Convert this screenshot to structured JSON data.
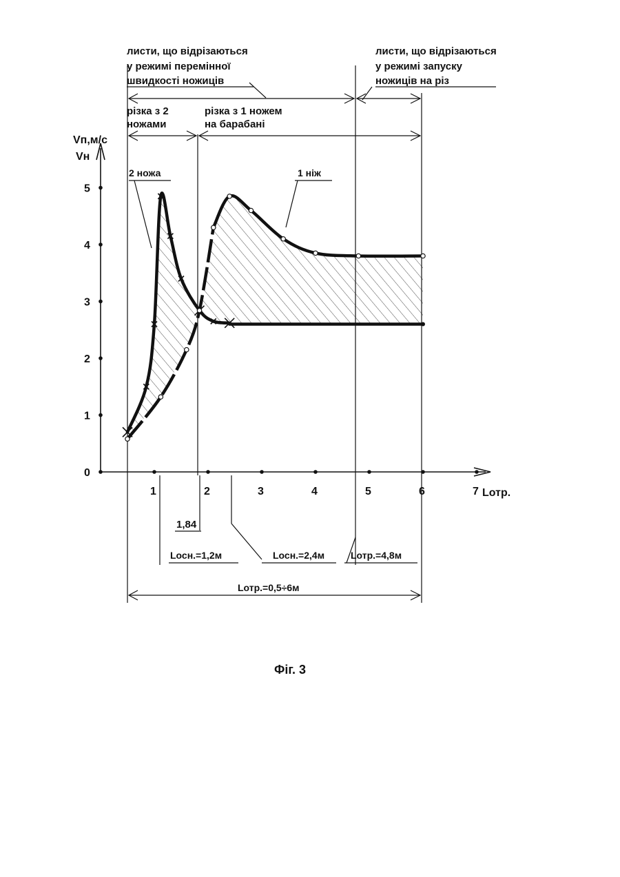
{
  "chart_data": {
    "type": "line",
    "figure_caption": "Фіг. 3",
    "y_axis": {
      "label_top": "Vп,м/с",
      "label_bottom": "Vн",
      "ticks": [
        "0",
        "1",
        "2",
        "3",
        "4",
        "5"
      ],
      "ylim": [
        0,
        5
      ]
    },
    "x_axis": {
      "label": "Lотр.",
      "ticks": [
        "1",
        "2",
        "3",
        "4",
        "5",
        "6",
        "7"
      ],
      "xlim": [
        0,
        7
      ]
    },
    "series": [
      {
        "name": "2 ножа",
        "markers": "cross",
        "x": [
          0.5,
          0.85,
          1.0,
          1.12,
          1.3,
          1.5,
          1.84,
          2.1,
          2.4
        ],
        "y": [
          0.7,
          1.5,
          2.6,
          4.85,
          4.15,
          3.4,
          2.84,
          2.65,
          2.62
        ]
      },
      {
        "name": "1 ніж",
        "markers": "circle",
        "x": [
          0.5,
          1.12,
          1.6,
          1.84,
          2.1,
          2.4,
          2.8,
          3.4,
          4.0,
          4.8,
          6.0
        ],
        "y": [
          0.58,
          1.32,
          2.15,
          2.84,
          4.3,
          4.85,
          4.6,
          4.1,
          3.85,
          3.8,
          3.8
        ]
      },
      {
        "name": "",
        "x": [
          2.4,
          6.0
        ],
        "y": [
          2.6,
          2.6
        ]
      }
    ],
    "annotations": {
      "label_2knives": "2 ножа",
      "label_1knife": "1 ніж",
      "value_184": "1,84",
      "l_osn_12": "Lосн.=1,2м",
      "l_osn_24": "Lосн.=2,4м",
      "l_otr_48": "Lотр.=4,8м",
      "l_otr_range": "Lотр.=0,5÷6м"
    },
    "regions": {
      "variable_speed_text": [
        "листи, що відрізаються",
        "у режимі перемінної",
        "швидкості ножиців"
      ],
      "start_mode_text": [
        "листи, що відрізаються",
        "у режимі запуску",
        "ножиців на різ"
      ],
      "two_knives_text": [
        "різка з 2",
        "ножами"
      ],
      "one_knife_text": [
        "різка з 1 ножем",
        "на барабані"
      ]
    }
  }
}
